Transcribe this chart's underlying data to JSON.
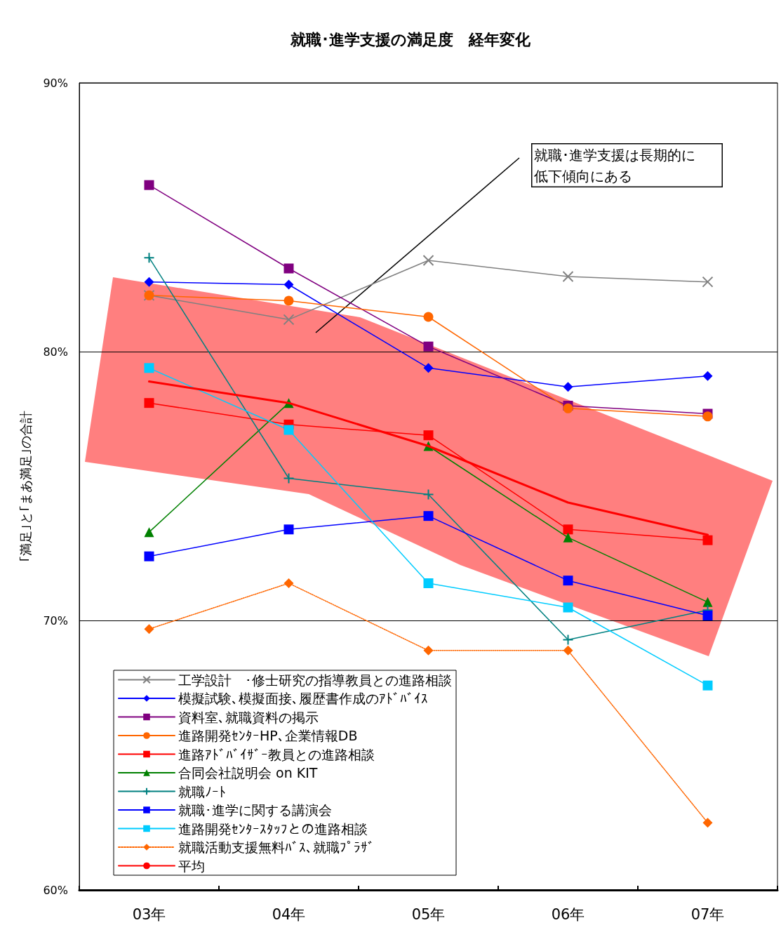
{
  "chart_data": {
    "type": "line",
    "title": "就職･進学支援の満足度　経年変化",
    "ylabel": "｢満足｣と｢まあ満足｣の合計",
    "categories": [
      "03年",
      "04年",
      "05年",
      "06年",
      "07年"
    ],
    "ylim": [
      60,
      90
    ],
    "yticks": [
      {
        "value": 60,
        "label": "60%"
      },
      {
        "value": 70,
        "label": "70%"
      },
      {
        "value": 80,
        "label": "80%"
      },
      {
        "value": 90,
        "label": "90%"
      }
    ],
    "grid": "y",
    "legend": "bottom left",
    "annotations": [
      "就職･進学支援は長期的に低下傾向にある"
    ],
    "series": [
      {
        "name": "工学設計　･修士研究の指導教員との進路相談",
        "color": "#808080",
        "marker": "cross",
        "values": [
          82.1,
          81.2,
          83.4,
          82.8,
          82.6
        ]
      },
      {
        "name": "模擬試験､模擬面接､履歴書作成のｱﾄﾞﾊﾞｲｽ",
        "color": "#0000ff",
        "marker": "diamond",
        "values": [
          82.6,
          82.5,
          79.4,
          78.7,
          79.1
        ]
      },
      {
        "name": "資料室､就職資料の掲示",
        "color": "#800080",
        "marker": "square",
        "values": [
          86.2,
          83.1,
          80.2,
          78.0,
          77.7
        ]
      },
      {
        "name": "進路開発ｾﾝﾀｰHP､企業情報DB",
        "color": "#ff6600",
        "marker": "circle",
        "values": [
          82.1,
          81.9,
          81.3,
          77.9,
          77.6
        ]
      },
      {
        "name": "進路ｱﾄﾞﾊﾞｲｻﾞｰ教員との進路相談",
        "color": "#ff0000",
        "marker": "square",
        "values": [
          78.1,
          77.3,
          76.9,
          73.4,
          73.0
        ]
      },
      {
        "name": "合同会社説明会 on KIT",
        "color": "#008000",
        "marker": "triangle",
        "values": [
          73.3,
          78.1,
          76.5,
          73.1,
          70.7
        ]
      },
      {
        "name": "就職ﾉｰﾄ",
        "color": "#008080",
        "marker": "plus",
        "values": [
          83.5,
          75.3,
          74.7,
          69.3,
          70.4
        ]
      },
      {
        "name": "就職･進学に関する講演会",
        "color": "#0000ff",
        "marker": "square",
        "values": [
          72.4,
          73.4,
          73.9,
          71.5,
          70.2
        ]
      },
      {
        "name": "進路開発ｾﾝﾀｰｽﾀｯﾌとの進路相談",
        "color": "#00ccff",
        "marker": "square",
        "values": [
          79.4,
          77.1,
          71.4,
          70.5,
          67.6
        ]
      },
      {
        "name": "就職活動支援無料ﾊﾞｽ､就職ﾌﾟﾗｻﾞ",
        "color": "#ff6600",
        "marker": "diamond",
        "line_style": "dotted",
        "values": [
          69.7,
          71.4,
          68.9,
          68.9,
          62.5
        ]
      },
      {
        "name": "平均",
        "color": "#ff0000",
        "marker": "none",
        "values": [
          78.9,
          78.1,
          76.5,
          74.4,
          73.2
        ]
      }
    ]
  }
}
